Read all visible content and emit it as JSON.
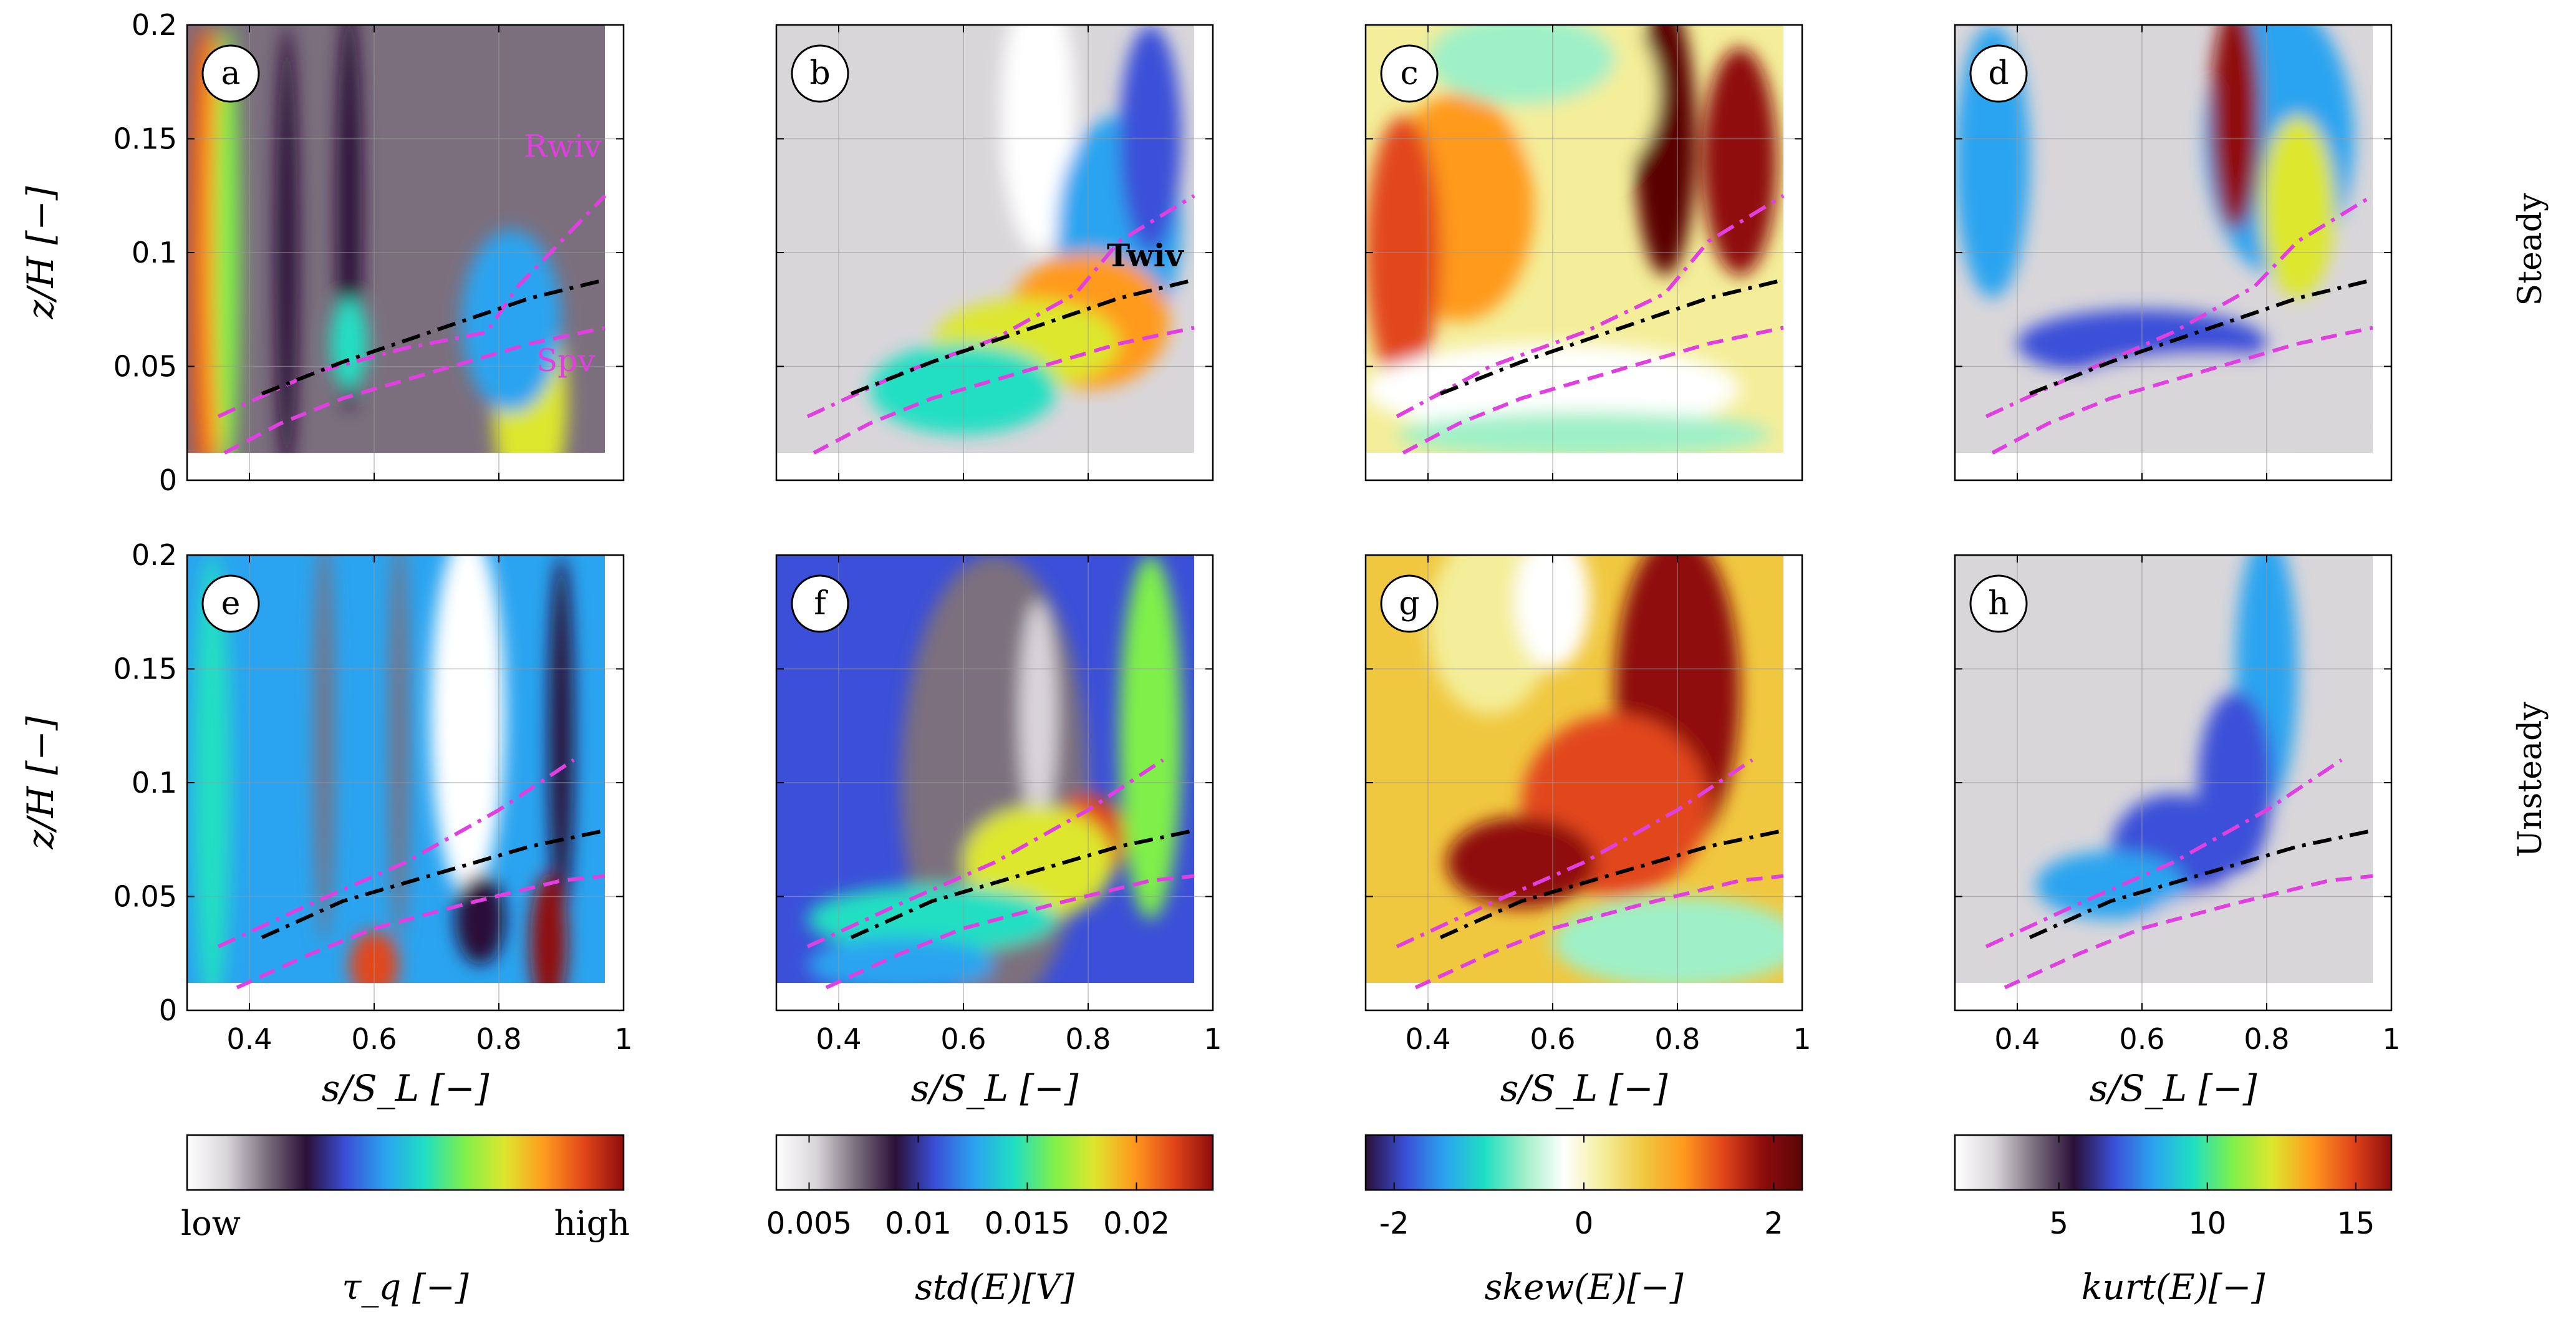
{
  "colors": {
    "boundary_dashdot": "#e040e0",
    "boundary_dashed": "#e040e0",
    "centerline": "#000000",
    "annotation_magenta": "#e040e0"
  },
  "row_labels": [
    "Steady",
    "Unsteady"
  ],
  "axes": {
    "ylabel": "z/H [−]",
    "xlabel": "s/S_L [−]",
    "yticks": [
      "0",
      "0.05",
      "0.1",
      "0.15",
      "0.2"
    ],
    "xticks": [
      "0.4",
      "0.6",
      "0.8",
      "1"
    ]
  },
  "annotations": {
    "Rwiv": "Rwiv",
    "Spv": "Spv",
    "Twiv": "Twiv"
  },
  "colorbars": [
    {
      "label": "τ_q [−]",
      "ticks": [],
      "low": "low",
      "high": "high",
      "cmap": "tau"
    },
    {
      "label": "std(E)[V]",
      "ticks": [
        "0.005",
        "0.01",
        "0.015",
        "0.02"
      ],
      "tick_values": [
        0.005,
        0.01,
        0.015,
        0.02
      ],
      "range": [
        0.0035,
        0.0235
      ],
      "cmap": "std"
    },
    {
      "label": "skew(E)[−]",
      "ticks": [
        "-2",
        "0",
        "2"
      ],
      "tick_values": [
        -2,
        0,
        2
      ],
      "range": [
        -2.3,
        2.3
      ],
      "cmap": "skew"
    },
    {
      "label": "kurt(E)[−]",
      "ticks": [
        "5",
        "10",
        "15"
      ],
      "tick_values": [
        5,
        10,
        15
      ],
      "range": [
        1.5,
        16.2
      ],
      "cmap": "kurt"
    }
  ],
  "chart_data": [
    {
      "type": "heatmap",
      "panel": "a",
      "row": "Steady",
      "quantity": "τ_q",
      "xlim": [
        0.3,
        1.0
      ],
      "ylim": [
        0,
        0.2
      ],
      "data_extent_x": [
        0.3,
        0.97
      ],
      "data_extent_y": [
        0.012,
        0.2
      ],
      "curves": {
        "upper_dashdot": {
          "x": [
            0.35,
            0.5,
            0.65,
            0.78,
            0.83,
            0.97
          ],
          "y": [
            0.028,
            0.047,
            0.058,
            0.065,
            0.085,
            0.125
          ]
        },
        "centerline_dashdot": {
          "x": [
            0.42,
            0.55,
            0.7,
            0.85,
            0.97
          ],
          "y": [
            0.038,
            0.052,
            0.066,
            0.08,
            0.088
          ]
        },
        "lower_dashed": {
          "x": [
            0.36,
            0.45,
            0.55,
            0.7,
            0.85,
            0.97
          ],
          "y": [
            0.012,
            0.025,
            0.036,
            0.048,
            0.06,
            0.067
          ]
        }
      }
    },
    {
      "type": "heatmap",
      "panel": "b",
      "row": "Steady",
      "quantity": "std(E)",
      "xlim": [
        0.3,
        1.0
      ],
      "ylim": [
        0,
        0.2
      ],
      "data_extent_x": [
        0.3,
        0.97
      ],
      "data_extent_y": [
        0.012,
        0.2
      ],
      "curves": {
        "upper_dashdot": {
          "x": [
            0.35,
            0.5,
            0.65,
            0.78,
            0.85,
            0.97
          ],
          "y": [
            0.028,
            0.047,
            0.062,
            0.082,
            0.105,
            0.125
          ]
        },
        "centerline_dashdot": {
          "x": [
            0.42,
            0.55,
            0.7,
            0.85,
            0.97
          ],
          "y": [
            0.038,
            0.052,
            0.066,
            0.08,
            0.088
          ]
        },
        "lower_dashed": {
          "x": [
            0.36,
            0.45,
            0.55,
            0.7,
            0.85,
            0.97
          ],
          "y": [
            0.012,
            0.025,
            0.036,
            0.048,
            0.06,
            0.067
          ]
        }
      }
    },
    {
      "type": "heatmap",
      "panel": "c",
      "row": "Steady",
      "quantity": "skew(E)",
      "xlim": [
        0.3,
        1.0
      ],
      "ylim": [
        0,
        0.2
      ],
      "data_extent_x": [
        0.3,
        0.97
      ],
      "data_extent_y": [
        0.012,
        0.2
      ],
      "curves": {
        "upper_dashdot": {
          "x": [
            0.35,
            0.5,
            0.65,
            0.78,
            0.85,
            0.97
          ],
          "y": [
            0.028,
            0.05,
            0.065,
            0.082,
            0.105,
            0.125
          ]
        },
        "centerline_dashdot": {
          "x": [
            0.42,
            0.55,
            0.7,
            0.85,
            0.97
          ],
          "y": [
            0.038,
            0.052,
            0.066,
            0.08,
            0.088
          ]
        },
        "lower_dashed": {
          "x": [
            0.36,
            0.45,
            0.55,
            0.7,
            0.85,
            0.97
          ],
          "y": [
            0.012,
            0.025,
            0.036,
            0.048,
            0.06,
            0.067
          ]
        }
      }
    },
    {
      "type": "heatmap",
      "panel": "d",
      "row": "Steady",
      "quantity": "kurt(E)",
      "xlim": [
        0.3,
        1.0
      ],
      "ylim": [
        0,
        0.2
      ],
      "data_extent_x": [
        0.3,
        0.97
      ],
      "data_extent_y": [
        0.012,
        0.2
      ],
      "curves": {
        "upper_dashdot": {
          "x": [
            0.35,
            0.5,
            0.65,
            0.78,
            0.85,
            0.97
          ],
          "y": [
            0.028,
            0.047,
            0.065,
            0.085,
            0.105,
            0.125
          ]
        },
        "centerline_dashdot": {
          "x": [
            0.42,
            0.55,
            0.7,
            0.85,
            0.97
          ],
          "y": [
            0.038,
            0.052,
            0.066,
            0.08,
            0.088
          ]
        },
        "lower_dashed": {
          "x": [
            0.36,
            0.45,
            0.55,
            0.7,
            0.85,
            0.97
          ],
          "y": [
            0.012,
            0.025,
            0.036,
            0.048,
            0.06,
            0.067
          ]
        }
      }
    },
    {
      "type": "heatmap",
      "panel": "e",
      "row": "Unsteady",
      "quantity": "τ_q",
      "xlim": [
        0.3,
        1.0
      ],
      "ylim": [
        0,
        0.2
      ],
      "data_extent_x": [
        0.3,
        0.97
      ],
      "data_extent_y": [
        0.012,
        0.2
      ],
      "curves": {
        "upper_dashdot": {
          "x": [
            0.35,
            0.5,
            0.65,
            0.8,
            0.92
          ],
          "y": [
            0.028,
            0.047,
            0.065,
            0.088,
            0.11
          ]
        },
        "centerline_dashdot": {
          "x": [
            0.42,
            0.55,
            0.7,
            0.85,
            0.97
          ],
          "y": [
            0.032,
            0.048,
            0.06,
            0.072,
            0.079
          ]
        },
        "lower_dashed": {
          "x": [
            0.38,
            0.5,
            0.6,
            0.75,
            0.9,
            0.97
          ],
          "y": [
            0.01,
            0.025,
            0.036,
            0.047,
            0.057,
            0.059
          ]
        }
      }
    },
    {
      "type": "heatmap",
      "panel": "f",
      "row": "Unsteady",
      "quantity": "std(E)",
      "xlim": [
        0.3,
        1.0
      ],
      "ylim": [
        0,
        0.2
      ],
      "data_extent_x": [
        0.3,
        0.97
      ],
      "data_extent_y": [
        0.012,
        0.2
      ],
      "curves": {
        "upper_dashdot": {
          "x": [
            0.35,
            0.5,
            0.65,
            0.8,
            0.92
          ],
          "y": [
            0.028,
            0.047,
            0.065,
            0.088,
            0.11
          ]
        },
        "centerline_dashdot": {
          "x": [
            0.42,
            0.55,
            0.7,
            0.85,
            0.97
          ],
          "y": [
            0.032,
            0.048,
            0.06,
            0.072,
            0.079
          ]
        },
        "lower_dashed": {
          "x": [
            0.38,
            0.5,
            0.6,
            0.75,
            0.9,
            0.97
          ],
          "y": [
            0.01,
            0.025,
            0.036,
            0.047,
            0.057,
            0.059
          ]
        }
      }
    },
    {
      "type": "heatmap",
      "panel": "g",
      "row": "Unsteady",
      "quantity": "skew(E)",
      "xlim": [
        0.3,
        1.0
      ],
      "ylim": [
        0,
        0.2
      ],
      "data_extent_x": [
        0.3,
        0.97
      ],
      "data_extent_y": [
        0.012,
        0.2
      ],
      "curves": {
        "upper_dashdot": {
          "x": [
            0.35,
            0.5,
            0.65,
            0.8,
            0.92
          ],
          "y": [
            0.028,
            0.047,
            0.065,
            0.088,
            0.11
          ]
        },
        "centerline_dashdot": {
          "x": [
            0.42,
            0.55,
            0.7,
            0.85,
            0.97
          ],
          "y": [
            0.032,
            0.048,
            0.06,
            0.072,
            0.079
          ]
        },
        "lower_dashed": {
          "x": [
            0.38,
            0.5,
            0.6,
            0.75,
            0.9,
            0.97
          ],
          "y": [
            0.01,
            0.025,
            0.036,
            0.047,
            0.057,
            0.059
          ]
        }
      }
    },
    {
      "type": "heatmap",
      "panel": "h",
      "row": "Unsteady",
      "quantity": "kurt(E)",
      "xlim": [
        0.3,
        1.0
      ],
      "ylim": [
        0,
        0.2
      ],
      "data_extent_x": [
        0.3,
        0.97
      ],
      "data_extent_y": [
        0.012,
        0.2
      ],
      "curves": {
        "upper_dashdot": {
          "x": [
            0.35,
            0.5,
            0.65,
            0.8,
            0.92
          ],
          "y": [
            0.028,
            0.047,
            0.065,
            0.088,
            0.11
          ]
        },
        "centerline_dashdot": {
          "x": [
            0.42,
            0.55,
            0.7,
            0.85,
            0.97
          ],
          "y": [
            0.032,
            0.048,
            0.06,
            0.072,
            0.079
          ]
        },
        "lower_dashed": {
          "x": [
            0.38,
            0.5,
            0.6,
            0.75,
            0.9,
            0.97
          ],
          "y": [
            0.01,
            0.025,
            0.036,
            0.047,
            0.057,
            0.059
          ]
        }
      }
    }
  ]
}
